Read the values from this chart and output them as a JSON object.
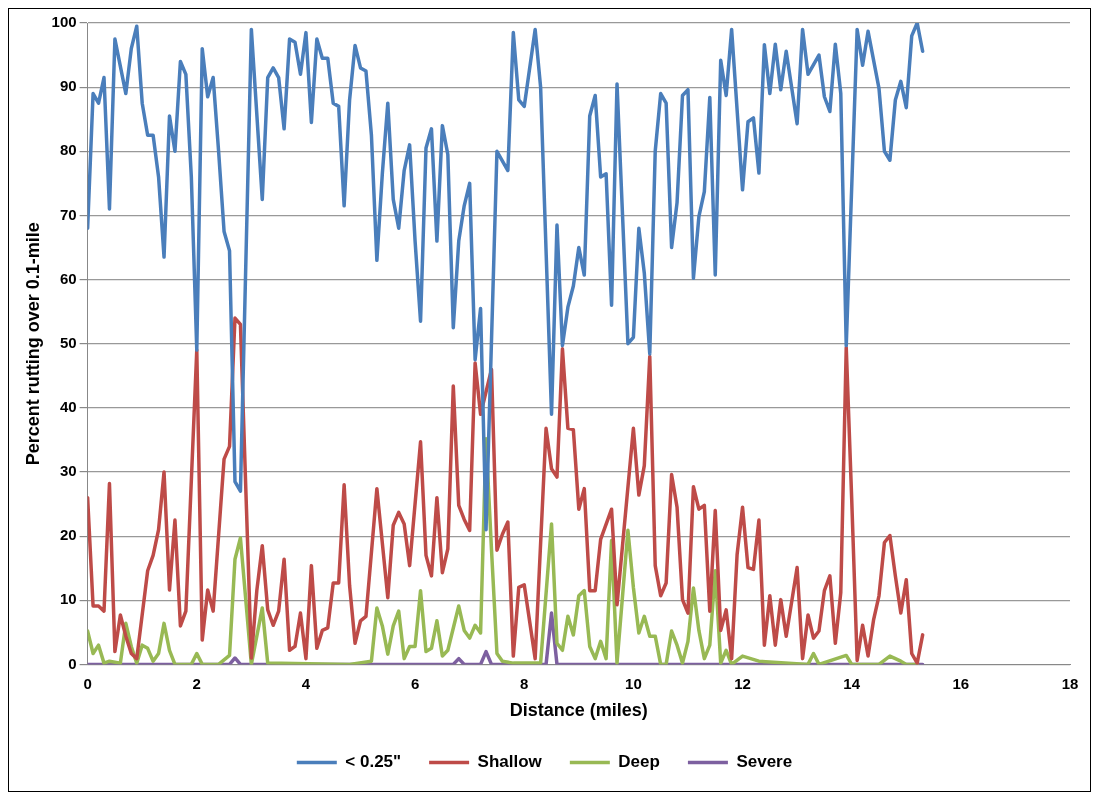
{
  "chart_data": {
    "type": "line",
    "xlabel": "Distance (miles)",
    "ylabel": "Percent rutting over 0.1-mile",
    "xlim": [
      0,
      18
    ],
    "xticks": [
      0,
      2,
      4,
      6,
      8,
      10,
      12,
      14,
      16,
      18
    ],
    "ylim": [
      0,
      100
    ],
    "yticks": [
      0,
      10,
      20,
      30,
      40,
      50,
      60,
      70,
      80,
      90,
      100
    ],
    "grid": "y",
    "legend": "bottom",
    "marker": "none",
    "line_style": "solid",
    "series": [
      {
        "name": "< 0.25\"",
        "color": "#4a7ebb",
        "x": [
          0,
          0.1,
          0.2,
          0.3,
          0.4,
          0.5,
          0.7,
          0.8,
          0.9,
          1.0,
          1.1,
          1.2,
          1.3,
          1.4,
          1.5,
          1.6,
          1.7,
          1.8,
          1.9,
          2.0,
          2.1,
          2.2,
          2.3,
          2.4,
          2.5,
          2.6,
          2.7,
          2.8,
          3.0,
          3.2,
          3.3,
          3.4,
          3.5,
          3.6,
          3.7,
          3.8,
          3.9,
          4.0,
          4.1,
          4.2,
          4.3,
          4.4,
          4.5,
          4.6,
          4.7,
          4.8,
          4.9,
          5.0,
          5.1,
          5.2,
          5.3,
          5.4,
          5.5,
          5.6,
          5.7,
          5.8,
          5.9,
          6.0,
          6.1,
          6.2,
          6.3,
          6.4,
          6.5,
          6.6,
          6.7,
          6.8,
          6.9,
          7.0,
          7.1,
          7.2,
          7.3,
          7.5,
          7.7,
          7.8,
          7.9,
          8.0,
          8.2,
          8.3,
          8.5,
          8.6,
          8.7,
          8.8,
          8.9,
          9.0,
          9.1,
          9.2,
          9.3,
          9.4,
          9.5,
          9.6,
          9.7,
          9.9,
          10.0,
          10.1,
          10.2,
          10.3,
          10.4,
          10.5,
          10.6,
          10.7,
          10.8,
          10.9,
          11.0,
          11.1,
          11.2,
          11.3,
          11.4,
          11.5,
          11.6,
          11.7,
          11.8,
          12.0,
          12.1,
          12.2,
          12.3,
          12.4,
          12.5,
          12.6,
          12.7,
          12.8,
          13.0,
          13.1,
          13.2,
          13.4,
          13.5,
          13.6,
          13.7,
          13.8,
          13.9,
          14.1,
          14.2,
          14.3,
          14.5,
          14.6,
          14.7,
          14.8,
          14.9,
          15.0,
          15.1,
          15.2,
          15.3
        ],
        "values": [
          68,
          89,
          87.5,
          91.5,
          71,
          97.5,
          89,
          96,
          99.5,
          87.5,
          82.5,
          82.5,
          76,
          63.5,
          85.5,
          80,
          94,
          92,
          76,
          49,
          96,
          88.5,
          91.5,
          80,
          67.5,
          64.5,
          28.5,
          27,
          99,
          72.5,
          91.5,
          93,
          91.5,
          83.5,
          97.5,
          97,
          92,
          98.5,
          84.5,
          97.5,
          94.5,
          94.5,
          87.5,
          87,
          71.5,
          88,
          96.5,
          93,
          92.5,
          82.5,
          63,
          76.5,
          87.5,
          72.5,
          68,
          77,
          81,
          66,
          53.5,
          80.5,
          83.5,
          66,
          84,
          79.5,
          52.5,
          66,
          71.5,
          75,
          47.5,
          55.5,
          21,
          80,
          77,
          98.5,
          88,
          87,
          99,
          90,
          39,
          68.5,
          49.7,
          55.7,
          59,
          65,
          60.7,
          85.5,
          88.7,
          76,
          76.5,
          56,
          90.5,
          50,
          51,
          68,
          61,
          48.4,
          80,
          89,
          87.5,
          65,
          72,
          88.7,
          89.6,
          60.2,
          69.8,
          73.7,
          88.4,
          60.7,
          94.2,
          88.7,
          99,
          74,
          84.6,
          85.2,
          76.6,
          96.6,
          89,
          96.7,
          89.6,
          95.6,
          84.3,
          99,
          92,
          95,
          88.5,
          86.2,
          96.7,
          89,
          49.7,
          99,
          93.4,
          98.7,
          89.8,
          80,
          78.6,
          88,
          90.9,
          86.8,
          98,
          100,
          95.6
        ]
      },
      {
        "name": "Shallow",
        "color": "#be4b48",
        "x": [
          0,
          0.1,
          0.2,
          0.3,
          0.4,
          0.5,
          0.6,
          0.7,
          0.8,
          0.9,
          1.1,
          1.2,
          1.3,
          1.4,
          1.5,
          1.6,
          1.7,
          1.8,
          2.0,
          2.1,
          2.2,
          2.3,
          2.5,
          2.6,
          2.7,
          2.8,
          3.0,
          3.1,
          3.2,
          3.3,
          3.4,
          3.5,
          3.6,
          3.7,
          3.8,
          3.9,
          4.0,
          4.1,
          4.2,
          4.3,
          4.4,
          4.5,
          4.6,
          4.7,
          4.8,
          4.9,
          5.0,
          5.1,
          5.3,
          5.5,
          5.6,
          5.7,
          5.8,
          5.9,
          6.1,
          6.2,
          6.3,
          6.4,
          6.5,
          6.6,
          6.7,
          6.8,
          6.9,
          7.0,
          7.1,
          7.2,
          7.4,
          7.5,
          7.6,
          7.7,
          7.8,
          7.9,
          8.0,
          8.2,
          8.4,
          8.5,
          8.6,
          8.7,
          8.8,
          8.9,
          9.0,
          9.1,
          9.2,
          9.3,
          9.4,
          9.6,
          9.7,
          10.0,
          10.1,
          10.2,
          10.3,
          10.4,
          10.5,
          10.6,
          10.7,
          10.8,
          10.9,
          11.0,
          11.1,
          11.2,
          11.3,
          11.4,
          11.5,
          11.6,
          11.7,
          11.8,
          11.9,
          12.0,
          12.1,
          12.2,
          12.3,
          12.4,
          12.5,
          12.6,
          12.7,
          12.8,
          13.0,
          13.1,
          13.2,
          13.3,
          13.4,
          13.5,
          13.6,
          13.7,
          13.8,
          13.9,
          14.0,
          14.1,
          14.2,
          14.3,
          14.4,
          14.5,
          14.6,
          14.7,
          14.8,
          14.9,
          15.0,
          15.1,
          15.2,
          15.3
        ],
        "values": [
          26,
          9.1,
          9.1,
          8.3,
          28.2,
          2,
          7.7,
          4.4,
          1.7,
          0.9,
          14.6,
          17,
          21,
          30,
          11.6,
          22.5,
          6,
          8.3,
          49,
          3.8,
          11.6,
          8.3,
          32,
          34,
          54,
          53,
          1,
          11.5,
          18.5,
          8.5,
          6.1,
          8.3,
          16.4,
          2.2,
          2.8,
          8,
          0.9,
          15.4,
          2.5,
          5.3,
          5.7,
          12.7,
          12.7,
          28,
          12.3,
          3.3,
          6.8,
          7.5,
          27.4,
          10.4,
          21.7,
          23.7,
          21.9,
          15.4,
          34.7,
          17,
          13.8,
          26,
          14.3,
          18,
          43.4,
          24.8,
          22.6,
          20.9,
          47,
          39,
          46,
          17.8,
          20.3,
          22.2,
          1.3,
          12,
          12.4,
          0.9,
          36.8,
          30.5,
          29.2,
          49.2,
          36.8,
          36.6,
          24.2,
          27.4,
          11.5,
          11.5,
          19.5,
          24.2,
          9.3,
          36.8,
          26.4,
          31,
          48,
          15.4,
          10.7,
          12.7,
          29.6,
          24.5,
          10.1,
          8,
          27.7,
          24.2,
          24.8,
          8.3,
          24,
          5.3,
          8.5,
          0.9,
          17.1,
          24.5,
          15.1,
          14.8,
          22.5,
          3,
          10.7,
          3,
          10.1,
          4.4,
          15.1,
          0.9,
          7.7,
          4.1,
          5.2,
          11.5,
          13.8,
          3.3,
          11.2,
          49.4,
          25.8,
          0.6,
          6.1,
          1.3,
          6.9,
          10.7,
          19,
          20.1,
          13.8,
          8,
          13.2,
          1.7,
          0.2,
          4.6
        ]
      },
      {
        "name": "Deep",
        "color": "#98b954",
        "x": [
          0,
          0.1,
          0.2,
          0.3,
          0.4,
          0.6,
          0.7,
          0.8,
          0.9,
          1.0,
          1.1,
          1.2,
          1.3,
          1.4,
          1.5,
          1.6,
          1.9,
          2.0,
          2.1,
          2.4,
          2.6,
          2.7,
          2.8,
          3.0,
          3.2,
          3.3,
          4.8,
          5.2,
          5.3,
          5.4,
          5.5,
          5.6,
          5.7,
          5.8,
          5.9,
          6.0,
          6.1,
          6.2,
          6.3,
          6.4,
          6.5,
          6.6,
          6.8,
          6.9,
          7.0,
          7.1,
          7.2,
          7.3,
          7.4,
          7.5,
          7.6,
          7.8,
          8.3,
          8.5,
          8.6,
          8.7,
          8.8,
          8.9,
          9.0,
          9.1,
          9.2,
          9.3,
          9.4,
          9.5,
          9.6,
          9.7,
          9.9,
          10.0,
          10.1,
          10.2,
          10.3,
          10.4,
          10.5,
          10.6,
          10.7,
          10.8,
          10.9,
          11.0,
          11.1,
          11.2,
          11.3,
          11.4,
          11.5,
          11.6,
          11.7,
          11.8,
          12.0,
          12.3,
          13.2,
          13.3,
          13.4,
          13.9,
          14.0,
          14.5,
          14.7,
          14.9,
          15.0,
          15.2
        ],
        "values": [
          5.2,
          1.7,
          3,
          0.2,
          0.5,
          0.2,
          6.4,
          2.8,
          0.2,
          3,
          2.5,
          0.5,
          1.7,
          6.4,
          2.2,
          0,
          0,
          1.7,
          0,
          0,
          1.4,
          16.4,
          19.7,
          0,
          8.8,
          0.2,
          0,
          0.5,
          8.8,
          6,
          1.6,
          6,
          8.3,
          0.9,
          2.8,
          2.8,
          11.5,
          2,
          2.5,
          6.8,
          1.3,
          2.2,
          9.1,
          5.3,
          4.1,
          6.1,
          4.9,
          35.2,
          17.9,
          1.7,
          0.5,
          0.2,
          0.2,
          21.9,
          3.3,
          2.2,
          7.5,
          4.6,
          10.7,
          11.5,
          2.8,
          0.9,
          3.6,
          0.9,
          19.3,
          0.2,
          20.9,
          12,
          4.9,
          7.5,
          4.4,
          4.4,
          0,
          0,
          5.2,
          3,
          0.2,
          3.6,
          11.9,
          5.3,
          0.9,
          3,
          14.6,
          0.2,
          2.2,
          0,
          1.3,
          0.5,
          0,
          1.7,
          0,
          1.4,
          0,
          0,
          1.3,
          0.5,
          0,
          0
        ]
      },
      {
        "name": "Severe",
        "color": "#7d60a0",
        "x": [
          0,
          2.6,
          2.7,
          2.8,
          6.7,
          6.8,
          6.9,
          7.2,
          7.3,
          7.4,
          8.4,
          8.5,
          8.6,
          15.3
        ],
        "values": [
          0,
          0,
          1,
          0,
          0,
          0.9,
          0,
          0,
          2,
          0,
          0,
          8,
          0,
          0
        ]
      }
    ]
  }
}
